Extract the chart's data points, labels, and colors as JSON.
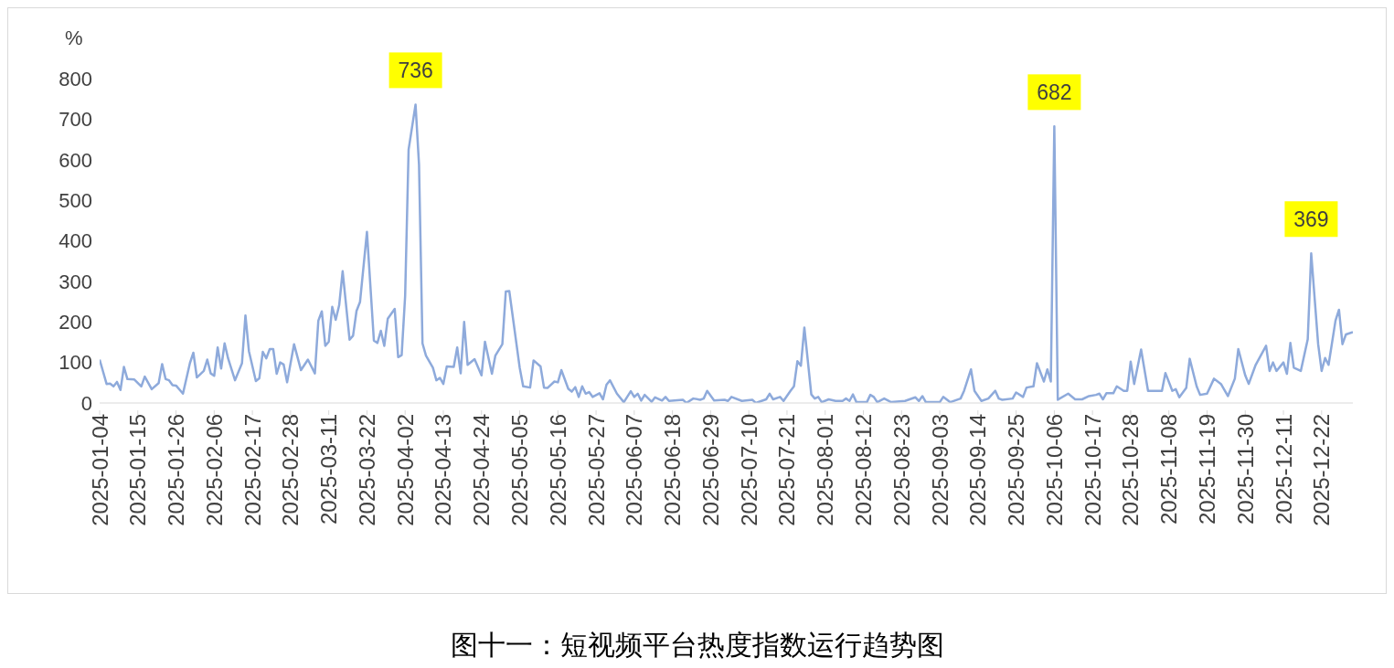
{
  "chart_data": {
    "type": "line",
    "title": "图十一：短视频平台热度指数运行趋势图",
    "ylabel": "%",
    "x": [
      "2025-01-04",
      "2025-01-06",
      "2025-01-07",
      "2025-01-08",
      "2025-01-09",
      "2025-01-10",
      "2025-01-11",
      "2025-01-12",
      "2025-01-14",
      "2025-01-16",
      "2025-01-17",
      "2025-01-19",
      "2025-01-21",
      "2025-01-22",
      "2025-01-23",
      "2025-01-24",
      "2025-01-25",
      "2025-01-26",
      "2025-01-28",
      "2025-01-30",
      "2025-01-31",
      "2025-02-01",
      "2025-02-03",
      "2025-02-04",
      "2025-02-05",
      "2025-02-06",
      "2025-02-07",
      "2025-02-08",
      "2025-02-09",
      "2025-02-10",
      "2025-02-12",
      "2025-02-14",
      "2025-02-15",
      "2025-02-16",
      "2025-02-18",
      "2025-02-19",
      "2025-02-20",
      "2025-02-21",
      "2025-02-22",
      "2025-02-23",
      "2025-02-24",
      "2025-02-25",
      "2025-02-26",
      "2025-02-27",
      "2025-02-28",
      "2025-03-01",
      "2025-03-03",
      "2025-03-05",
      "2025-03-07",
      "2025-03-08",
      "2025-03-09",
      "2025-03-10",
      "2025-03-11",
      "2025-03-12",
      "2025-03-13",
      "2025-03-14",
      "2025-03-15",
      "2025-03-17",
      "2025-03-18",
      "2025-03-19",
      "2025-03-20",
      "2025-03-22",
      "2025-03-24",
      "2025-03-25",
      "2025-03-26",
      "2025-03-27",
      "2025-03-28",
      "2025-03-30",
      "2025-03-31",
      "2025-04-01",
      "2025-04-02",
      "2025-04-03",
      "2025-04-05",
      "2025-04-06",
      "2025-04-07",
      "2025-04-08",
      "2025-04-10",
      "2025-04-11",
      "2025-04-12",
      "2025-04-13",
      "2025-04-14",
      "2025-04-16",
      "2025-04-17",
      "2025-04-18",
      "2025-04-19",
      "2025-04-20",
      "2025-04-22",
      "2025-04-24",
      "2025-04-25",
      "2025-04-27",
      "2025-04-28",
      "2025-04-30",
      "2025-05-01",
      "2025-05-02",
      "2025-05-05",
      "2025-05-06",
      "2025-05-08",
      "2025-05-09",
      "2025-05-11",
      "2025-05-12",
      "2025-05-13",
      "2025-05-15",
      "2025-05-16",
      "2025-05-17",
      "2025-05-19",
      "2025-05-20",
      "2025-05-21",
      "2025-05-22",
      "2025-05-23",
      "2025-05-24",
      "2025-05-25",
      "2025-05-26",
      "2025-05-28",
      "2025-05-29",
      "2025-05-30",
      "2025-05-31",
      "2025-06-02",
      "2025-06-04",
      "2025-06-06",
      "2025-06-07",
      "2025-06-08",
      "2025-06-09",
      "2025-06-10",
      "2025-06-12",
      "2025-06-13",
      "2025-06-15",
      "2025-06-16",
      "2025-06-17",
      "2025-06-21",
      "2025-06-22",
      "2025-06-24",
      "2025-06-26",
      "2025-06-27",
      "2025-06-28",
      "2025-06-30",
      "2025-07-03",
      "2025-07-04",
      "2025-07-05",
      "2025-07-08",
      "2025-07-11",
      "2025-07-12",
      "2025-07-15",
      "2025-07-16",
      "2025-07-17",
      "2025-07-19",
      "2025-07-20",
      "2025-07-22",
      "2025-07-23",
      "2025-07-24",
      "2025-07-25",
      "2025-07-26",
      "2025-07-28",
      "2025-07-29",
      "2025-07-30",
      "2025-07-31",
      "2025-08-02",
      "2025-08-04",
      "2025-08-06",
      "2025-08-07",
      "2025-08-08",
      "2025-08-09",
      "2025-08-10",
      "2025-08-13",
      "2025-08-14",
      "2025-08-15",
      "2025-08-16",
      "2025-08-18",
      "2025-08-20",
      "2025-08-24",
      "2025-08-27",
      "2025-08-28",
      "2025-08-29",
      "2025-08-30",
      "2025-09-03",
      "2025-09-04",
      "2025-09-06",
      "2025-09-09",
      "2025-09-10",
      "2025-09-12",
      "2025-09-13",
      "2025-09-15",
      "2025-09-17",
      "2025-09-19",
      "2025-09-20",
      "2025-09-21",
      "2025-09-24",
      "2025-09-25",
      "2025-09-27",
      "2025-09-28",
      "2025-09-30",
      "2025-10-01",
      "2025-10-03",
      "2025-10-04",
      "2025-10-05",
      "2025-10-06",
      "2025-10-07",
      "2025-10-10",
      "2025-10-12",
      "2025-10-14",
      "2025-10-16",
      "2025-10-18",
      "2025-10-19",
      "2025-10-20",
      "2025-10-21",
      "2025-10-23",
      "2025-10-24",
      "2025-10-26",
      "2025-10-27",
      "2025-10-28",
      "2025-10-29",
      "2025-10-31",
      "2025-11-02",
      "2025-11-05",
      "2025-11-06",
      "2025-11-07",
      "2025-11-09",
      "2025-11-10",
      "2025-11-11",
      "2025-11-13",
      "2025-11-14",
      "2025-11-16",
      "2025-11-17",
      "2025-11-19",
      "2025-11-21",
      "2025-11-23",
      "2025-11-25",
      "2025-11-27",
      "2025-11-28",
      "2025-11-30",
      "2025-12-01",
      "2025-12-03",
      "2025-12-06",
      "2025-12-07",
      "2025-12-08",
      "2025-12-09",
      "2025-12-11",
      "2025-12-12",
      "2025-12-13",
      "2025-12-14",
      "2025-12-16",
      "2025-12-18",
      "2025-12-19",
      "2025-12-21",
      "2025-12-22",
      "2025-12-23",
      "2025-12-24",
      "2025-12-26",
      "2025-12-27",
      "2025-12-28",
      "2025-12-29",
      "2025-12-31"
    ],
    "series": [
      {
        "color": "#8eaadb",
        "values": [
          107,
          47,
          48,
          41,
          52,
          32,
          89,
          59,
          58,
          41,
          65,
          34,
          49,
          96,
          59,
          56,
          44,
          43,
          23,
          98,
          124,
          63,
          79,
          107,
          73,
          67,
          137,
          85,
          147,
          110,
          56,
          98,
          216,
          128,
          54,
          61,
          126,
          110,
          133,
          133,
          72,
          100,
          95,
          51,
          98,
          145,
          81,
          107,
          73,
          203,
          226,
          141,
          151,
          237,
          205,
          241,
          325,
          156,
          166,
          227,
          249,
          422,
          154,
          148,
          178,
          141,
          208,
          232,
          113,
          118,
          264,
          625,
          736,
          588,
          147,
          117,
          87,
          56,
          62,
          47,
          90,
          89,
          137,
          73,
          200,
          94,
          108,
          68,
          151,
          72,
          117,
          145,
          275,
          276,
          87,
          41,
          38,
          105,
          90,
          38,
          37,
          53,
          51,
          81,
          35,
          28,
          39,
          15,
          41,
          23,
          27,
          15,
          24,
          9,
          45,
          56,
          23,
          2,
          29,
          15,
          23,
          6,
          20,
          3,
          14,
          6,
          15,
          5,
          8,
          0,
          11,
          8,
          11,
          30,
          6,
          8,
          5,
          15,
          5,
          8,
          0,
          9,
          23,
          9,
          15,
          5,
          30,
          41,
          103,
          92,
          186,
          21,
          11,
          15,
          2,
          9,
          5,
          5,
          11,
          5,
          21,
          2,
          2,
          20,
          15,
          2,
          11,
          2,
          5,
          14,
          5,
          17,
          2,
          2,
          15,
          2,
          11,
          30,
          83,
          30,
          5,
          11,
          30,
          11,
          8,
          11,
          26,
          15,
          38,
          41,
          98,
          53,
          83,
          53,
          682,
          8,
          23,
          9,
          9,
          17,
          20,
          23,
          9,
          24,
          24,
          41,
          30,
          30,
          102,
          47,
          132,
          30,
          30,
          30,
          74,
          30,
          34,
          14,
          37,
          109,
          41,
          20,
          23,
          60,
          47,
          17,
          60,
          133,
          68,
          47,
          94,
          141,
          79,
          100,
          79,
          100,
          72,
          148,
          87,
          79,
          157,
          369,
          145,
          79,
          111,
          94,
          203,
          230,
          145,
          169,
          175
        ]
      }
    ],
    "xlim": [
      "2025-01-04",
      "2025-12-31"
    ],
    "xticks": [
      "2025-01-04",
      "2025-01-15",
      "2025-01-26",
      "2025-02-06",
      "2025-02-17",
      "2025-02-28",
      "2025-03-11",
      "2025-03-22",
      "2025-04-02",
      "2025-04-13",
      "2025-04-24",
      "2025-05-05",
      "2025-05-16",
      "2025-05-27",
      "2025-06-07",
      "2025-06-18",
      "2025-06-29",
      "2025-07-10",
      "2025-07-21",
      "2025-08-01",
      "2025-08-12",
      "2025-08-23",
      "2025-09-03",
      "2025-09-14",
      "2025-09-25",
      "2025-10-06",
      "2025-10-17",
      "2025-10-28",
      "2025-11-08",
      "2025-11-19",
      "2025-11-30",
      "2025-12-11",
      "2025-12-22"
    ],
    "ylim": [
      0,
      800
    ],
    "yticks": [
      0,
      100,
      200,
      300,
      400,
      500,
      600,
      700,
      800
    ],
    "annotations": [
      {
        "text": "736",
        "x": "2025-04-05",
        "y": 736
      },
      {
        "text": "682",
        "x": "2025-10-06",
        "y": 682
      },
      {
        "text": "369",
        "x": "2025-12-19",
        "y": 369
      }
    ]
  }
}
